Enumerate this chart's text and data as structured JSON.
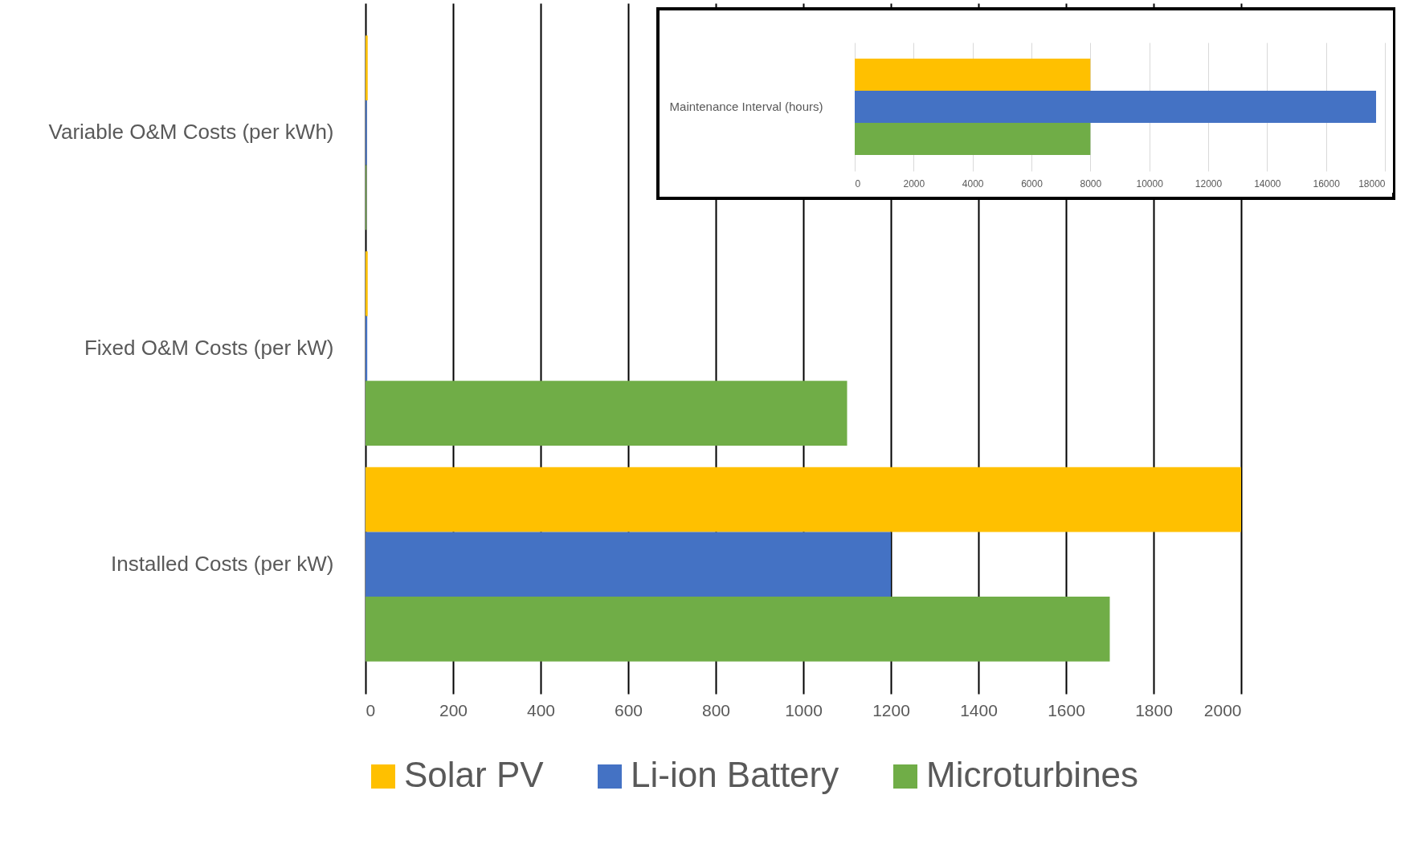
{
  "chart_data": [
    {
      "type": "bar",
      "orientation": "horizontal",
      "categories": [
        "Variable O&M Costs (per kWh)",
        "Fixed O&M Costs (per kW)",
        "Installed Costs (per kW)"
      ],
      "series": [
        {
          "name": "Solar PV",
          "color": "#ffc000",
          "values": [
            5,
            5,
            2000
          ]
        },
        {
          "name": "Li-ion Battery",
          "color": "#4472c4",
          "values": [
            3,
            4,
            1200
          ]
        },
        {
          "name": "Microturbines",
          "color": "#70ad47",
          "values": [
            2,
            1100,
            1700
          ]
        }
      ],
      "xlim": [
        0,
        2000
      ],
      "xticks": [
        0,
        200,
        400,
        600,
        800,
        1000,
        1200,
        1400,
        1600,
        1800,
        2000
      ],
      "grid": "x",
      "legend": "bottom"
    },
    {
      "type": "bar",
      "orientation": "horizontal",
      "categories": [
        "Maintenance Interval (hours)"
      ],
      "series": [
        {
          "color": "#ffc000",
          "values": [
            8000
          ]
        },
        {
          "color": "#4472c4",
          "values": [
            17700
          ]
        },
        {
          "color": "#70ad47",
          "values": [
            8000
          ]
        }
      ],
      "xlim": [
        0,
        18000
      ],
      "xticks": [
        0,
        2000,
        4000,
        6000,
        8000,
        10000,
        12000,
        14000,
        16000,
        18000
      ],
      "grid": "x",
      "legend": false
    }
  ]
}
